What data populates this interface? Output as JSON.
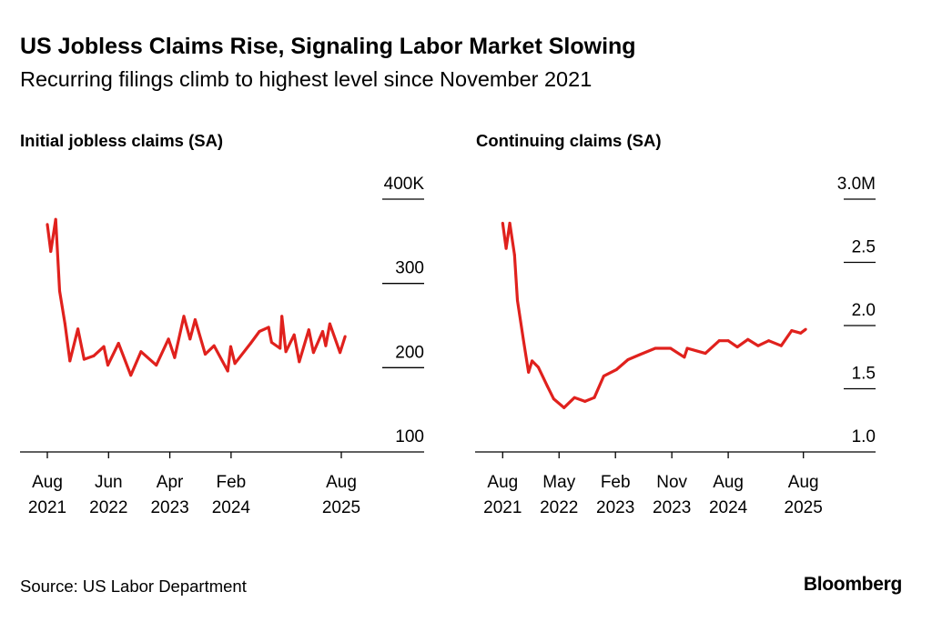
{
  "title": "US Jobless Claims Rise, Signaling Labor Market Slowing",
  "subtitle": "Recurring filings climb to highest level since November 2021",
  "source": "Source: US Labor Department",
  "logo": "Bloomberg",
  "line_color": "#e0211d",
  "chart_data": [
    {
      "type": "line",
      "title": "Initial jobless claims (SA)",
      "ylim": [
        100,
        400
      ],
      "yticks": [
        {
          "value": 400,
          "label": "400K"
        },
        {
          "value": 300,
          "label": "300"
        },
        {
          "value": 200,
          "label": "200"
        },
        {
          "value": 100,
          "label": "100"
        }
      ],
      "xticks": [
        {
          "date": "2021-08-01",
          "month": "Aug",
          "year": "2021"
        },
        {
          "date": "2022-06-01",
          "month": "Jun",
          "year": "2022"
        },
        {
          "date": "2023-04-01",
          "month": "Apr",
          "year": "2023"
        },
        {
          "date": "2024-02-01",
          "month": "Feb",
          "year": "2024"
        },
        {
          "date": "2025-08-01",
          "month": "Aug",
          "year": "2025"
        }
      ],
      "grid": true,
      "unit": "thousands",
      "x": [
        "2021-08-01",
        "2021-08-18",
        "2021-09-12",
        "2021-10-01",
        "2021-10-28",
        "2021-11-22",
        "2022-01-01",
        "2022-02-01",
        "2022-03-18",
        "2022-05-08",
        "2022-05-28",
        "2022-07-20",
        "2022-09-20",
        "2022-11-10",
        "2023-01-25",
        "2023-03-25",
        "2023-04-25",
        "2023-06-10",
        "2023-07-10",
        "2023-08-05",
        "2023-09-25",
        "2023-11-08",
        "2024-01-15",
        "2024-01-30",
        "2024-02-20",
        "2024-05-07",
        "2024-06-20",
        "2024-08-05",
        "2024-08-20",
        "2024-10-01",
        "2024-10-10",
        "2024-10-30",
        "2024-12-10",
        "2025-01-05",
        "2025-02-22",
        "2025-03-15",
        "2025-04-30",
        "2025-05-15",
        "2025-06-05",
        "2025-07-25",
        "2025-08-20"
      ],
      "y": [
        370,
        338,
        376,
        291,
        252,
        208,
        246,
        210,
        214,
        225,
        203,
        229,
        191,
        219,
        203,
        234,
        212,
        261,
        234,
        257,
        216,
        226,
        196,
        225,
        205,
        229,
        243,
        248,
        230,
        223,
        261,
        219,
        239,
        207,
        245,
        218,
        243,
        226,
        252,
        218,
        237
      ]
    },
    {
      "type": "line",
      "title": "Continuing claims (SA)",
      "ylim": [
        1.0,
        3.0
      ],
      "yticks": [
        {
          "value": 3.0,
          "label": "3.0M"
        },
        {
          "value": 2.5,
          "label": "2.5"
        },
        {
          "value": 2.0,
          "label": "2.0"
        },
        {
          "value": 1.5,
          "label": "1.5"
        },
        {
          "value": 1.0,
          "label": "1.0"
        }
      ],
      "xticks": [
        {
          "date": "2021-08-01",
          "month": "Aug",
          "year": "2021"
        },
        {
          "date": "2022-05-01",
          "month": "May",
          "year": "2022"
        },
        {
          "date": "2023-02-01",
          "month": "Feb",
          "year": "2023"
        },
        {
          "date": "2023-11-01",
          "month": "Nov",
          "year": "2023"
        },
        {
          "date": "2024-08-01",
          "month": "Aug",
          "year": "2024"
        },
        {
          "date": "2025-08-01",
          "month": "Aug",
          "year": "2025"
        }
      ],
      "grid": true,
      "unit": "millions",
      "x": [
        "2021-08-01",
        "2021-08-18",
        "2021-09-05",
        "2021-09-28",
        "2021-10-12",
        "2021-11-10",
        "2021-12-05",
        "2021-12-22",
        "2022-01-22",
        "2022-03-05",
        "2022-04-05",
        "2022-05-25",
        "2022-07-15",
        "2022-09-05",
        "2022-10-20",
        "2022-12-05",
        "2023-02-05",
        "2023-04-01",
        "2023-05-28",
        "2023-08-12",
        "2023-10-25",
        "2024-01-01",
        "2024-01-15",
        "2024-04-12",
        "2024-06-18",
        "2024-08-01",
        "2024-09-15",
        "2024-11-05",
        "2024-12-25",
        "2025-02-15",
        "2025-04-15",
        "2025-06-05",
        "2025-07-18",
        "2025-08-12"
      ],
      "y": [
        2.81,
        2.61,
        2.81,
        2.56,
        2.2,
        1.89,
        1.63,
        1.72,
        1.67,
        1.52,
        1.42,
        1.35,
        1.43,
        1.4,
        1.43,
        1.6,
        1.65,
        1.73,
        1.77,
        1.82,
        1.82,
        1.75,
        1.82,
        1.78,
        1.88,
        1.88,
        1.83,
        1.89,
        1.84,
        1.88,
        1.84,
        1.96,
        1.94,
        1.97
      ]
    }
  ]
}
